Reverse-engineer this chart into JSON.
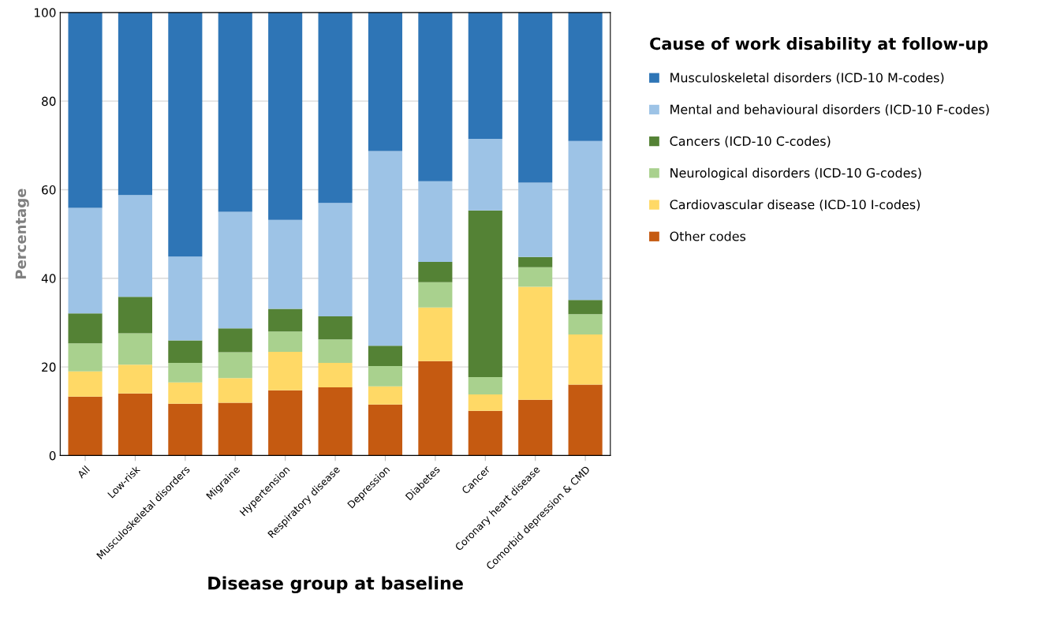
{
  "chart_data": {
    "type": "bar",
    "stacked": true,
    "xlabel": "Disease group at baseline",
    "ylabel": "Percentage",
    "legend_title": "Cause of work disability at follow-up",
    "legend": "right",
    "grid": "y",
    "categories": [
      "All",
      "Low-risk",
      "Musculoskeletal disorders",
      "Migraine",
      "Hypertension",
      "Respiratory disease",
      "Depression",
      "Diabetes",
      "Cancer",
      "Coronary heart disease",
      "Comorbid depression & CMD"
    ],
    "ylim": [
      0,
      100
    ],
    "yticks": [
      0,
      20,
      40,
      60,
      80,
      100
    ],
    "series": [
      {
        "name": "Other codes",
        "color": "#c55a11",
        "values": [
          13.3,
          14.0,
          11.7,
          11.9,
          14.7,
          15.4,
          11.5,
          21.3,
          10.1,
          12.6,
          16.0
        ]
      },
      {
        "name": "Cardiovascular disease (ICD-10 I-codes)",
        "color": "#ffd966",
        "values": [
          5.7,
          6.5,
          4.8,
          5.6,
          8.7,
          5.5,
          4.1,
          12.1,
          3.7,
          25.5,
          11.3
        ]
      },
      {
        "name": "Neurological disorders (ICD-10 G-codes)",
        "color": "#a9d18e",
        "values": [
          6.3,
          7.1,
          4.4,
          5.8,
          4.6,
          5.3,
          4.6,
          5.7,
          3.9,
          4.4,
          4.6
        ]
      },
      {
        "name": "Cancers (ICD-10 C-codes)",
        "color": "#548235",
        "values": [
          6.8,
          8.2,
          5.1,
          5.4,
          5.1,
          5.2,
          4.6,
          4.6,
          37.6,
          2.3,
          3.2
        ]
      },
      {
        "name": "Mental and behavioural disorders (ICD-10 F-codes)",
        "color": "#9dc3e6",
        "values": [
          23.8,
          23.0,
          18.9,
          26.3,
          20.1,
          25.6,
          43.9,
          18.2,
          16.2,
          16.8,
          35.9
        ]
      },
      {
        "name": "Musculoskeletal disorders (ICD-10 M-codes)",
        "color": "#2e75b6",
        "values": [
          44.1,
          41.2,
          55.1,
          45.0,
          46.8,
          43.0,
          31.3,
          38.1,
          28.5,
          38.4,
          29.0
        ]
      }
    ]
  }
}
